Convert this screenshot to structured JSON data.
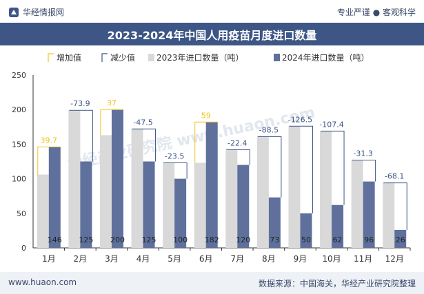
{
  "header": {
    "brand": "华经情报网",
    "slogan": "专业严谨 ● 客观科学"
  },
  "footer": {
    "url": "www.huaon.com",
    "source": "数据来源：中国海关，华经产业研究院整理"
  },
  "watermark": "华经产业研究院 www.huaon.com",
  "colors": {
    "bar_2023": "#d9d9d9",
    "bar_2024": "#5e709b",
    "increase": "#f0c419",
    "decrease": "#3d5686",
    "title_bg": "#3d5686"
  },
  "chart_data": {
    "type": "bar",
    "title": "2023-2024年中国人用疫苗月度进口数量",
    "categories": [
      "1月",
      "2月",
      "3月",
      "4月",
      "5月",
      "6月",
      "7月",
      "8月",
      "9月",
      "10月",
      "11月",
      "12月"
    ],
    "series": [
      {
        "name": "2023年进口数量（吨）",
        "values": [
          106,
          199,
          163,
          172,
          123,
          123,
          142,
          161,
          176,
          169,
          127,
          94
        ]
      },
      {
        "name": "2024年进口数量（吨）",
        "values": [
          146,
          125,
          200,
          125,
          100,
          182,
          120,
          73,
          50,
          62,
          96,
          26
        ]
      }
    ],
    "changes": [
      39.7,
      -73.9,
      37,
      -47.5,
      -23.5,
      59,
      -22.4,
      -88.5,
      -126.5,
      -107.4,
      -31.3,
      -68.1
    ],
    "change_labels": [
      "39.7",
      "-73.9",
      "37",
      "-47.5",
      "-23.5",
      "59",
      "-22.4",
      "-88.5",
      "-126.5",
      "-107.4",
      "-31.3",
      "-68.1"
    ],
    "legend": [
      "增加值",
      "减少值",
      "2023年进口数量（吨）",
      "2024年进口数量（吨）"
    ],
    "ylim": [
      0,
      250
    ],
    "yticks": [
      0,
      50,
      100,
      150,
      200,
      250
    ],
    "xlabel": "",
    "ylabel": ""
  }
}
